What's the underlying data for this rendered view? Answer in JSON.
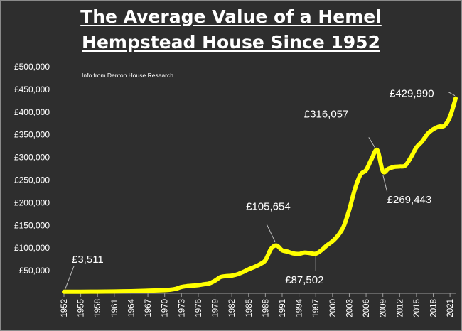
{
  "chart_data": {
    "type": "line",
    "title_line1": "The Average Value of a Hemel",
    "title_line2": "Hempstead House Since 1952",
    "source_note": "Info from Denton House Research",
    "ylim": [
      0,
      500000
    ],
    "xlim": [
      1952,
      2022
    ],
    "y_ticks": [
      {
        "value": 50000,
        "label": "£50,000"
      },
      {
        "value": 100000,
        "label": "£100,000"
      },
      {
        "value": 150000,
        "label": "£150,000"
      },
      {
        "value": 200000,
        "label": "£200,000"
      },
      {
        "value": 250000,
        "label": "£250,000"
      },
      {
        "value": 300000,
        "label": "£300,000"
      },
      {
        "value": 350000,
        "label": "£350,000"
      },
      {
        "value": 400000,
        "label": "£400,000"
      },
      {
        "value": 450000,
        "label": "£450,000"
      },
      {
        "value": 500000,
        "label": "£500,000"
      }
    ],
    "x_ticks": [
      "1952",
      "1955",
      "1958",
      "1961",
      "1964",
      "1967",
      "1970",
      "1973",
      "1976",
      "1979",
      "1982",
      "1985",
      "1988",
      "1991",
      "1994",
      "1997",
      "2000",
      "2003",
      "2006",
      "2009",
      "2012",
      "2015",
      "2018",
      "2021"
    ],
    "series_color": "#ffff00",
    "grid": false,
    "x": [
      1952,
      1955,
      1958,
      1961,
      1964,
      1967,
      1970,
      1971,
      1972,
      1973,
      1974,
      1975,
      1976,
      1977,
      1978,
      1979,
      1980,
      1981,
      1982,
      1983,
      1984,
      1985,
      1986,
      1987,
      1988,
      1989,
      1990,
      1991,
      1992,
      1993,
      1994,
      1995,
      1996,
      1997,
      1998,
      1999,
      2000,
      2001,
      2002,
      2003,
      2004,
      2005,
      2006,
      2007,
      2008,
      2009,
      2010,
      2011,
      2012,
      2013,
      2014,
      2015,
      2016,
      2017,
      2018,
      2019,
      2020,
      2021,
      2022
    ],
    "y": [
      3511,
      3600,
      3800,
      4200,
      4800,
      5800,
      7000,
      8000,
      10000,
      14000,
      16000,
      17000,
      18000,
      20000,
      22000,
      28000,
      36000,
      38000,
      39000,
      42000,
      47000,
      53000,
      58000,
      64000,
      73000,
      98000,
      105654,
      95000,
      92000,
      88000,
      87000,
      90000,
      88500,
      87502,
      95000,
      106000,
      115000,
      128000,
      148000,
      185000,
      230000,
      262000,
      272000,
      297000,
      316057,
      269443,
      275000,
      279000,
      280000,
      282000,
      300000,
      322000,
      335000,
      352000,
      362000,
      368000,
      370000,
      390000,
      429990
    ],
    "annotations": [
      {
        "text": "£3,511",
        "x": 1952,
        "y": 3511
      },
      {
        "text": "£105,654",
        "x": 1990,
        "y": 105654
      },
      {
        "text": "£87,502",
        "x": 1997,
        "y": 87502
      },
      {
        "text": "£316,057",
        "x": 2008,
        "y": 316057
      },
      {
        "text": "£269,443",
        "x": 2009,
        "y": 269443
      },
      {
        "text": "£429,990",
        "x": 2022,
        "y": 429990
      }
    ]
  }
}
